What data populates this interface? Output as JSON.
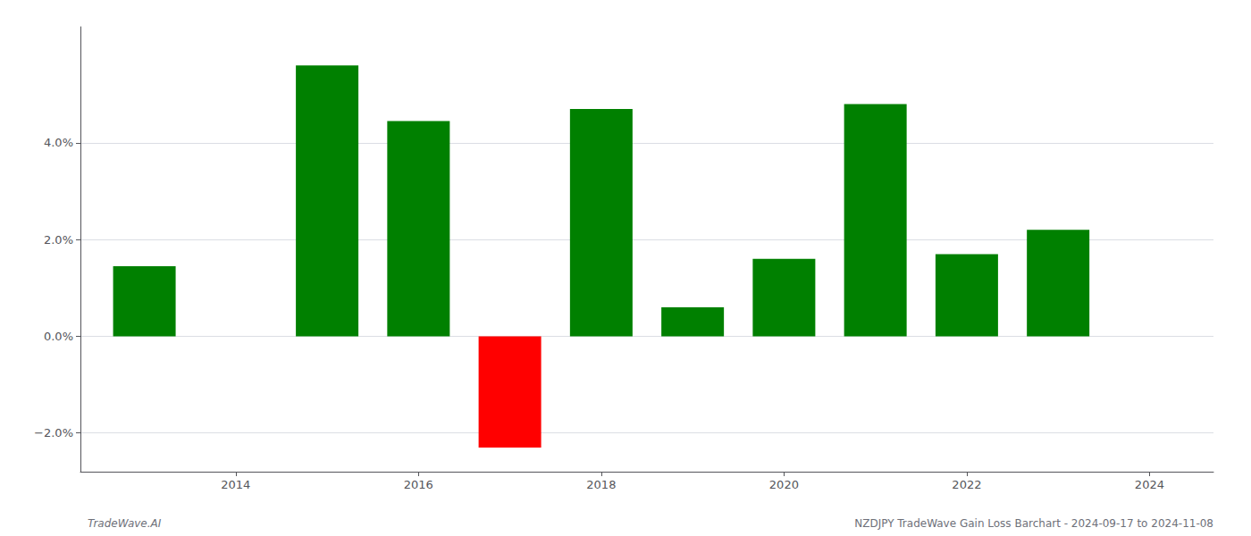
{
  "chart_data": {
    "type": "bar",
    "x": [
      2013,
      2015,
      2016,
      2017,
      2018,
      2019,
      2020,
      2021,
      2022,
      2023
    ],
    "values": [
      1.45,
      5.6,
      4.45,
      -2.3,
      4.7,
      0.6,
      1.6,
      4.8,
      1.7,
      2.2
    ],
    "colors": [
      "#008000",
      "#008000",
      "#008000",
      "#ff0000",
      "#008000",
      "#008000",
      "#008000",
      "#008000",
      "#008000",
      "#008000"
    ],
    "xlim": [
      2012.3,
      2024.7
    ],
    "xticks": [
      2014,
      2016,
      2018,
      2020,
      2022,
      2024
    ],
    "ylim": [
      -2.8,
      6.4
    ],
    "yticks": [
      {
        "value": -2.0,
        "label": "−2.0%"
      },
      {
        "value": 0.0,
        "label": "0.0%"
      },
      {
        "value": 2.0,
        "label": "2.0%"
      },
      {
        "value": 4.0,
        "label": "4.0%"
      }
    ],
    "grid": true,
    "annotations": [
      "TradeWave.AI",
      "NZDJPY TradeWave Gain Loss Barchart - 2024-09-17 to 2024-11-08"
    ]
  }
}
